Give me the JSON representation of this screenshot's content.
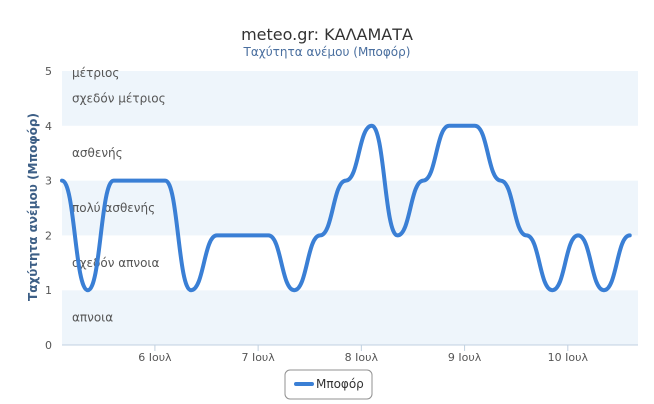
{
  "chart_data": {
    "type": "line",
    "title": "meteo.gr: ΚΑΛΑΜΑΤΑ",
    "subtitle": "Ταχύτητα ανέμου (Μποφόρ)",
    "ylabel": "Ταχύτητα ανέμου (Μποφόρ)",
    "xlabel": "",
    "ylim": [
      0,
      5
    ],
    "yticks": [
      "0",
      "1",
      "2",
      "3",
      "4",
      "5"
    ],
    "xlim": [
      5.1,
      10.68
    ],
    "xticks": [
      {
        "value": 6,
        "label": "6 Ιουλ"
      },
      {
        "value": 7,
        "label": "7 Ιουλ"
      },
      {
        "value": 8,
        "label": "8 Ιουλ"
      },
      {
        "value": 9,
        "label": "9 Ιουλ"
      },
      {
        "value": 10,
        "label": "10 Ιουλ"
      }
    ],
    "bands": [
      {
        "from": 0,
        "to": 1,
        "label": "απνοια",
        "color": "#eef5fb"
      },
      {
        "from": 1,
        "to": 2,
        "label": "σχεδόν απνοια",
        "color": "#ffffff"
      },
      {
        "from": 2,
        "to": 3,
        "label": "πολύ ασθενής",
        "color": "#eef5fb"
      },
      {
        "from": 3,
        "to": 4,
        "label": "ασθενής",
        "color": "#ffffff"
      },
      {
        "from": 4,
        "to": 5,
        "label": "σχεδόν μέτριος",
        "color": "#eef5fb"
      },
      {
        "from": 5,
        "to": 5,
        "label": "μέτριος",
        "color": "#ffffff"
      }
    ],
    "series": [
      {
        "name": "Μποφόρ",
        "color": "#3a7fd5",
        "x": [
          5.1,
          5.35,
          5.6,
          6.1,
          6.35,
          6.6,
          7.1,
          7.35,
          7.6,
          7.85,
          8.1,
          8.35,
          8.6,
          8.85,
          9.1,
          9.35,
          9.6,
          9.85,
          10.1,
          10.35,
          10.6
        ],
        "y": [
          3,
          1,
          3,
          3,
          1,
          2,
          2,
          1,
          2,
          3,
          4,
          2,
          3,
          4,
          4,
          3,
          2,
          1,
          2,
          1,
          2
        ]
      }
    ],
    "legend": {
      "position": "bottom-center"
    },
    "grid": false
  }
}
